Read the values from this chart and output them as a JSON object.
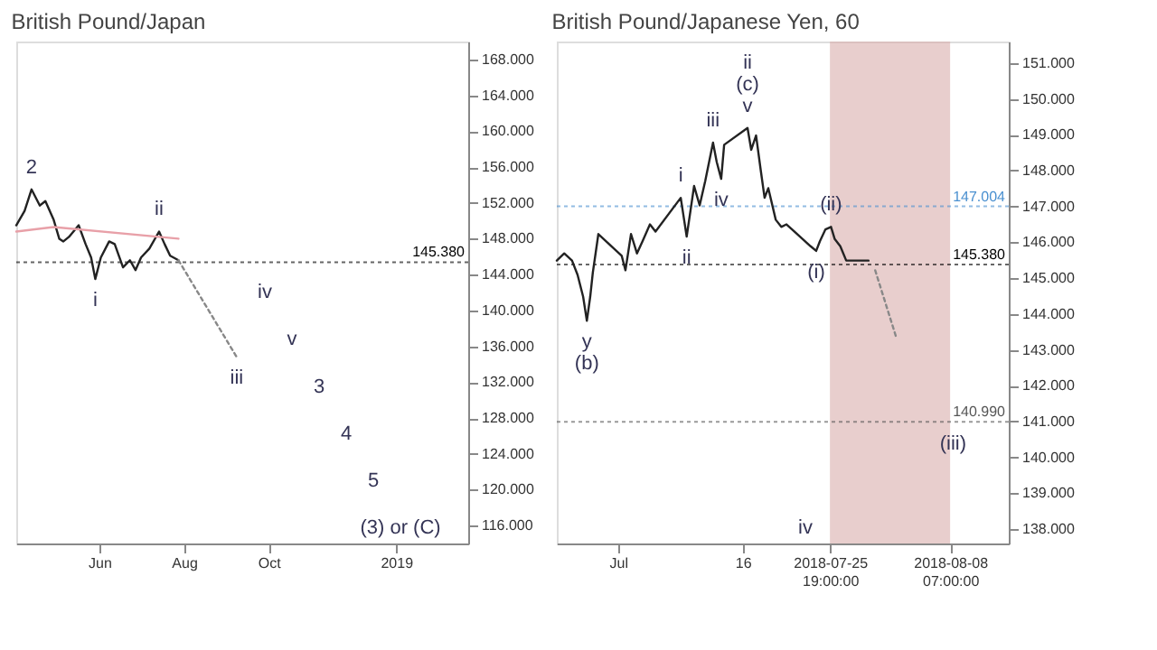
{
  "chart_data": [
    {
      "type": "line",
      "title": "British Pound/Japan",
      "xlim": [
        "2018-04-02",
        "2019-02-22"
      ],
      "ylim": [
        114,
        170
      ],
      "xticks": [
        {
          "value": "2018-06-01",
          "label": "Jun"
        },
        {
          "value": "2018-08-01",
          "label": "Aug"
        },
        {
          "value": "2018-10-01",
          "label": "Oct"
        },
        {
          "value": "2019-01-01",
          "label": "2019"
        }
      ],
      "yticks": [
        {
          "value": 116,
          "label": "116.000"
        },
        {
          "value": 120,
          "label": "120.000"
        },
        {
          "value": 124,
          "label": "124.000"
        },
        {
          "value": 128,
          "label": "128.000"
        },
        {
          "value": 132,
          "label": "132.000"
        },
        {
          "value": 136,
          "label": "136.000"
        },
        {
          "value": 140,
          "label": "140.000"
        },
        {
          "value": 144,
          "label": "144.000"
        },
        {
          "value": 148,
          "label": "148.000"
        },
        {
          "value": 152,
          "label": "152.000"
        },
        {
          "value": 156,
          "label": "156.000"
        },
        {
          "value": 160,
          "label": "160.000"
        },
        {
          "value": 164,
          "label": "164.000"
        },
        {
          "value": 168,
          "label": "168.000"
        }
      ],
      "series": [
        {
          "color": "#222222",
          "x": [
            "2018-04-02",
            "2018-04-08",
            "2018-04-13",
            "2018-04-19",
            "2018-04-23",
            "2018-04-29",
            "2018-05-03",
            "2018-05-06",
            "2018-05-10",
            "2018-05-17",
            "2018-05-22",
            "2018-05-26",
            "2018-05-29",
            "2018-06-02",
            "2018-06-08",
            "2018-06-12",
            "2018-06-18",
            "2018-06-23",
            "2018-06-27",
            "2018-07-01",
            "2018-07-07",
            "2018-07-14",
            "2018-07-18",
            "2018-07-22",
            "2018-07-28"
          ],
          "values": [
            149.5,
            151.1,
            153.5,
            151.7,
            152.2,
            150.1,
            148.0,
            147.7,
            148.2,
            149.5,
            147.4,
            145.9,
            143.5,
            145.9,
            147.7,
            147.4,
            144.8,
            145.6,
            144.5,
            145.9,
            146.9,
            148.8,
            147.4,
            146.1,
            145.6
          ]
        },
        {
          "color": "#e8a0a8",
          "x": [
            "2018-04-02",
            "2018-04-29",
            "2018-07-28"
          ],
          "values": [
            148.8,
            149.3,
            148.0
          ]
        },
        {
          "color": "#888888",
          "line_style": "dotted",
          "x": [
            "2018-07-28",
            "2018-09-08"
          ],
          "values": [
            145.6,
            134.8
          ]
        }
      ],
      "ref_lines": [
        {
          "axis": "y",
          "value": 145.38,
          "label": "145.380",
          "color": "#000000",
          "line_style": "dotted"
        }
      ],
      "annotations": [
        {
          "text": "2",
          "x": "2018-04-13",
          "y": 153.5
        },
        {
          "text": "ii",
          "x": "2018-07-14",
          "y": 148.8
        },
        {
          "text": "i",
          "x": "2018-05-29",
          "y": 143.5
        },
        "iv",
        {
          "text": "iii",
          "x": "2018-09-08",
          "y": 134.8
        },
        "v",
        "3",
        "4",
        "5",
        "(3) or (C)"
      ],
      "grid": false
    },
    {
      "type": "line",
      "title": "British Pound/Japanese Yen, 60",
      "xlim": [
        "2018-06-25T03:00",
        "2018-08-14T21:00"
      ],
      "ylim": [
        137.6,
        151.6
      ],
      "xticks": [
        {
          "value": "2018-07-02",
          "label": "Jul"
        },
        {
          "value": "2018-07-16",
          "label": "16"
        },
        {
          "value": "2018-07-25T19:00",
          "label": "2018-07-25 19:00:00"
        },
        {
          "value": "2018-08-08T07:00",
          "label": "2018-08-08 07:00:00"
        }
      ],
      "yticks": [
        {
          "value": 138,
          "label": "138.000"
        },
        {
          "value": 139,
          "label": "139.000"
        },
        {
          "value": 140,
          "label": "140.000"
        },
        {
          "value": 141,
          "label": "141.000"
        },
        {
          "value": 142,
          "label": "142.000"
        },
        {
          "value": 143,
          "label": "143.000"
        },
        {
          "value": 144,
          "label": "144.000"
        },
        {
          "value": 145,
          "label": "145.000"
        },
        {
          "value": 146,
          "label": "146.000"
        },
        {
          "value": 147,
          "label": "147.000"
        },
        {
          "value": 148,
          "label": "148.000"
        },
        {
          "value": 149,
          "label": "149.000"
        },
        {
          "value": 150,
          "label": "150.000"
        },
        {
          "value": 151,
          "label": "151.000"
        }
      ],
      "series": [
        {
          "color": "#222222",
          "x": [
            "2018-06-25T03:00",
            "2018-06-25T23:00",
            "2018-06-26T20:00",
            "2018-06-27T11:00",
            "2018-06-28T02:00",
            "2018-06-28T12:00",
            "2018-06-28T21:00",
            "2018-06-29T04:00",
            "2018-06-29T19:00",
            "2018-07-02T10:00",
            "2018-07-02T20:00",
            "2018-07-03T11:00",
            "2018-07-04T03:00",
            "2018-07-04T18:00",
            "2018-07-05T14:00",
            "2018-07-06T05:00",
            "2018-07-09T01:00",
            "2018-07-09T17:00",
            "2018-07-10T13:00",
            "2018-07-11T04:00",
            "2018-07-11T19:00",
            "2018-07-12T16:00",
            "2018-07-13T02:00",
            "2018-07-13T14:00",
            "2018-07-13T22:00",
            "2018-07-16T13:00",
            "2018-07-16T23:00",
            "2018-07-17T12:00",
            "2018-07-18T01:00",
            "2018-07-18T11:00",
            "2018-07-18T21:00",
            "2018-07-19T17:00",
            "2018-07-20T08:00",
            "2018-07-20T22:00",
            "2018-07-23T15:00",
            "2018-07-24T06:00",
            "2018-07-24T16:00",
            "2018-07-25T07:00",
            "2018-07-25T22:00",
            "2018-07-26T08:00",
            "2018-07-26T23:00",
            "2018-07-27T15:00",
            "2018-07-30T03:00"
          ],
          "values": [
            145.49,
            145.69,
            145.49,
            145.09,
            144.48,
            143.81,
            144.48,
            145.15,
            146.23,
            145.62,
            145.22,
            146.23,
            145.69,
            146.03,
            146.5,
            146.3,
            147.24,
            146.16,
            147.57,
            147.03,
            147.71,
            148.78,
            148.24,
            147.77,
            148.72,
            149.19,
            148.58,
            148.98,
            147.98,
            147.24,
            147.51,
            146.63,
            146.43,
            146.5,
            145.89,
            145.76,
            146.03,
            146.36,
            146.43,
            146.09,
            145.89,
            145.49,
            145.49
          ]
        },
        {
          "color": "#888888",
          "line_style": "dotted",
          "x": [
            "2018-07-30T21:00",
            "2018-08-02T06:00"
          ],
          "values": [
            145.22,
            143.34
          ]
        }
      ],
      "bands": [
        {
          "axis": "x",
          "from": "2018-07-25T19:00",
          "to": "2018-08-08T07:00",
          "color": "#d9aeac"
        }
      ],
      "ref_lines": [
        {
          "axis": "y",
          "value": 145.38,
          "label": "145.380",
          "color": "#000000",
          "line_style": "dotted"
        },
        {
          "axis": "y",
          "value": 147.004,
          "label": "147.004",
          "color": "#4a90d0",
          "line_style": "dotted"
        },
        {
          "axis": "y",
          "value": 140.99,
          "label": "140.990",
          "color": "#555555",
          "line_style": "dotted"
        }
      ],
      "annotations": [
        {
          "text": "y",
          "x": "2018-06-28T12:00",
          "y": 143.81
        },
        {
          "text": "(b)",
          "x": "2018-06-28T12:00",
          "y": 143.81
        },
        {
          "text": "v",
          "x": "2018-07-16T13:00",
          "y": 149.19
        },
        {
          "text": "(c)",
          "x": "2018-07-16T13:00",
          "y": 149.19
        },
        {
          "text": "ii",
          "x": "2018-07-16T13:00",
          "y": 149.19
        },
        {
          "text": "iii",
          "x": "2018-07-12T16:00",
          "y": 148.78
        },
        {
          "text": "i",
          "x": "2018-07-09T01:00",
          "y": 147.24
        },
        {
          "text": "ii",
          "x": "2018-07-09T17:00",
          "y": 146.16
        },
        {
          "text": "iv",
          "x": "2018-07-13T14:00",
          "y": 147.77
        },
        {
          "text": "(i)",
          "x": "2018-07-24T06:00",
          "y": 145.76
        },
        {
          "text": "(ii)",
          "x": "2018-07-25T22:00",
          "y": 146.43
        },
        {
          "text": "(iii)",
          "x": "2018-08-08T15:00",
          "y": 140.38
        },
        "iv"
      ],
      "grid": false
    }
  ]
}
